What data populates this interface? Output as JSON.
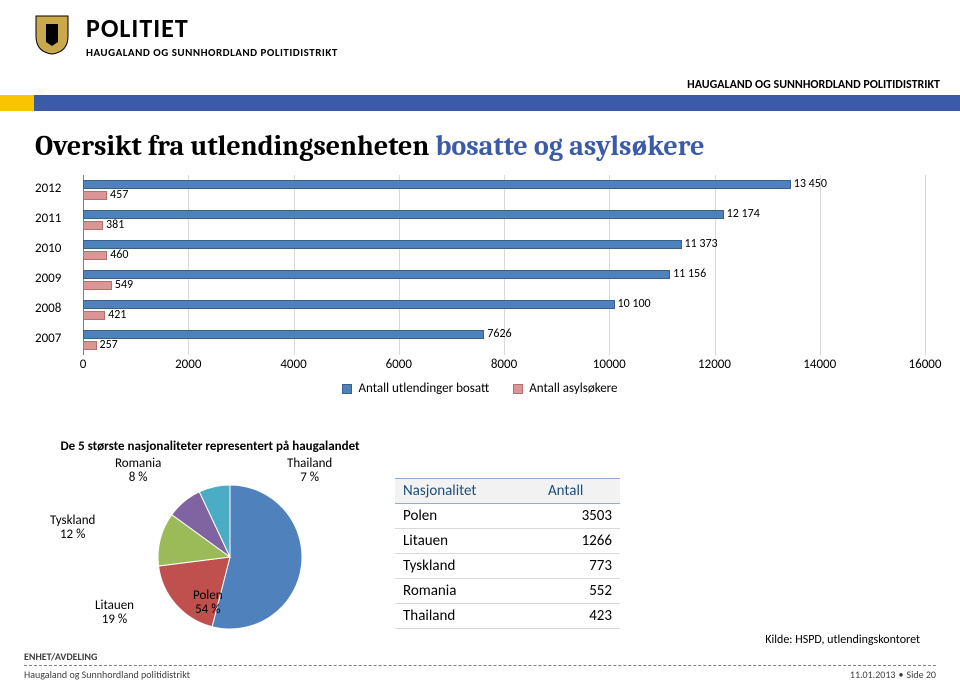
{
  "header": {
    "brand": "POLITIET",
    "subbrand": "HAUGALAND OG SUNNHORDLAND POLITIDISTRIKT",
    "crest_colors": {
      "shield": "#c9a94b",
      "lion": "#000000"
    },
    "top_right": "HAUGALAND OG SUNNHORDLAND POLITIDISTRIKT",
    "stripe": {
      "yellow": "#f9c400",
      "blue": "#3b5ba8"
    }
  },
  "title": {
    "plain": "Oversikt fra utlendingsenheten ",
    "accent": "bosatte og asylsøkere",
    "accent_color": "#3b5ba8",
    "fontsize": 28
  },
  "barchart": {
    "type": "bar",
    "x_min": 0,
    "x_max": 16000,
    "x_step": 2000,
    "grid_color": "#d9d9d9",
    "series": [
      {
        "name": "Antall utlendinger bosatt",
        "color": "#4f81bd",
        "border": "#3a5f8a"
      },
      {
        "name": "Antall asylsøkere",
        "color": "#d99694",
        "border": "#b86f6d"
      }
    ],
    "rows": [
      {
        "year": "2012",
        "v1": 13450,
        "v1_label": "13 450",
        "v2": 457,
        "v2_label": "457"
      },
      {
        "year": "2011",
        "v1": 12174,
        "v1_label": "12 174",
        "v2": 381,
        "v2_label": "381"
      },
      {
        "year": "2010",
        "v1": 11373,
        "v1_label": "11 373",
        "v2": 460,
        "v2_label": "460"
      },
      {
        "year": "2009",
        "v1": 11156,
        "v1_label": "11 156",
        "v2": 549,
        "v2_label": "549"
      },
      {
        "year": "2008",
        "v1": 10100,
        "v1_label": "10 100",
        "v2": 421,
        "v2_label": "421"
      },
      {
        "year": "2007",
        "v1": 7626,
        "v1_label": "7626",
        "v2": 257,
        "v2_label": "257"
      }
    ],
    "label_fontsize": 13
  },
  "pie": {
    "type": "pie",
    "title": "De 5 største nasjonaliteter representert på haugalandet",
    "slices": [
      {
        "label": "Polen",
        "pct": 54,
        "color": "#4f81bd"
      },
      {
        "label": "Litauen",
        "pct": 19,
        "color": "#c0504d"
      },
      {
        "label": "Tyskland",
        "pct": 12,
        "color": "#9bbb59"
      },
      {
        "label": "Romania",
        "pct": 8,
        "color": "#8064a2"
      },
      {
        "label": "Thailand",
        "pct": 7,
        "color": "#4bacc6"
      }
    ],
    "radius": 72,
    "label_fontsize": 13
  },
  "table": {
    "columns": [
      "Nasjonalitet",
      "Antall"
    ],
    "rows": [
      [
        "Polen",
        "3503"
      ],
      [
        "Litauen",
        "1266"
      ],
      [
        "Tyskland",
        "773"
      ],
      [
        "Romania",
        "552"
      ],
      [
        "Thailand",
        "423"
      ]
    ],
    "header_color": "#1f4e79"
  },
  "source": "Kilde: HSPD, utlendingskontoret",
  "footer": {
    "enhet": "ENHET/AVDELING",
    "left": "Haugaland og Sunnhordland politidistrikt",
    "date": "11.01.2013",
    "page": "Side 20"
  }
}
